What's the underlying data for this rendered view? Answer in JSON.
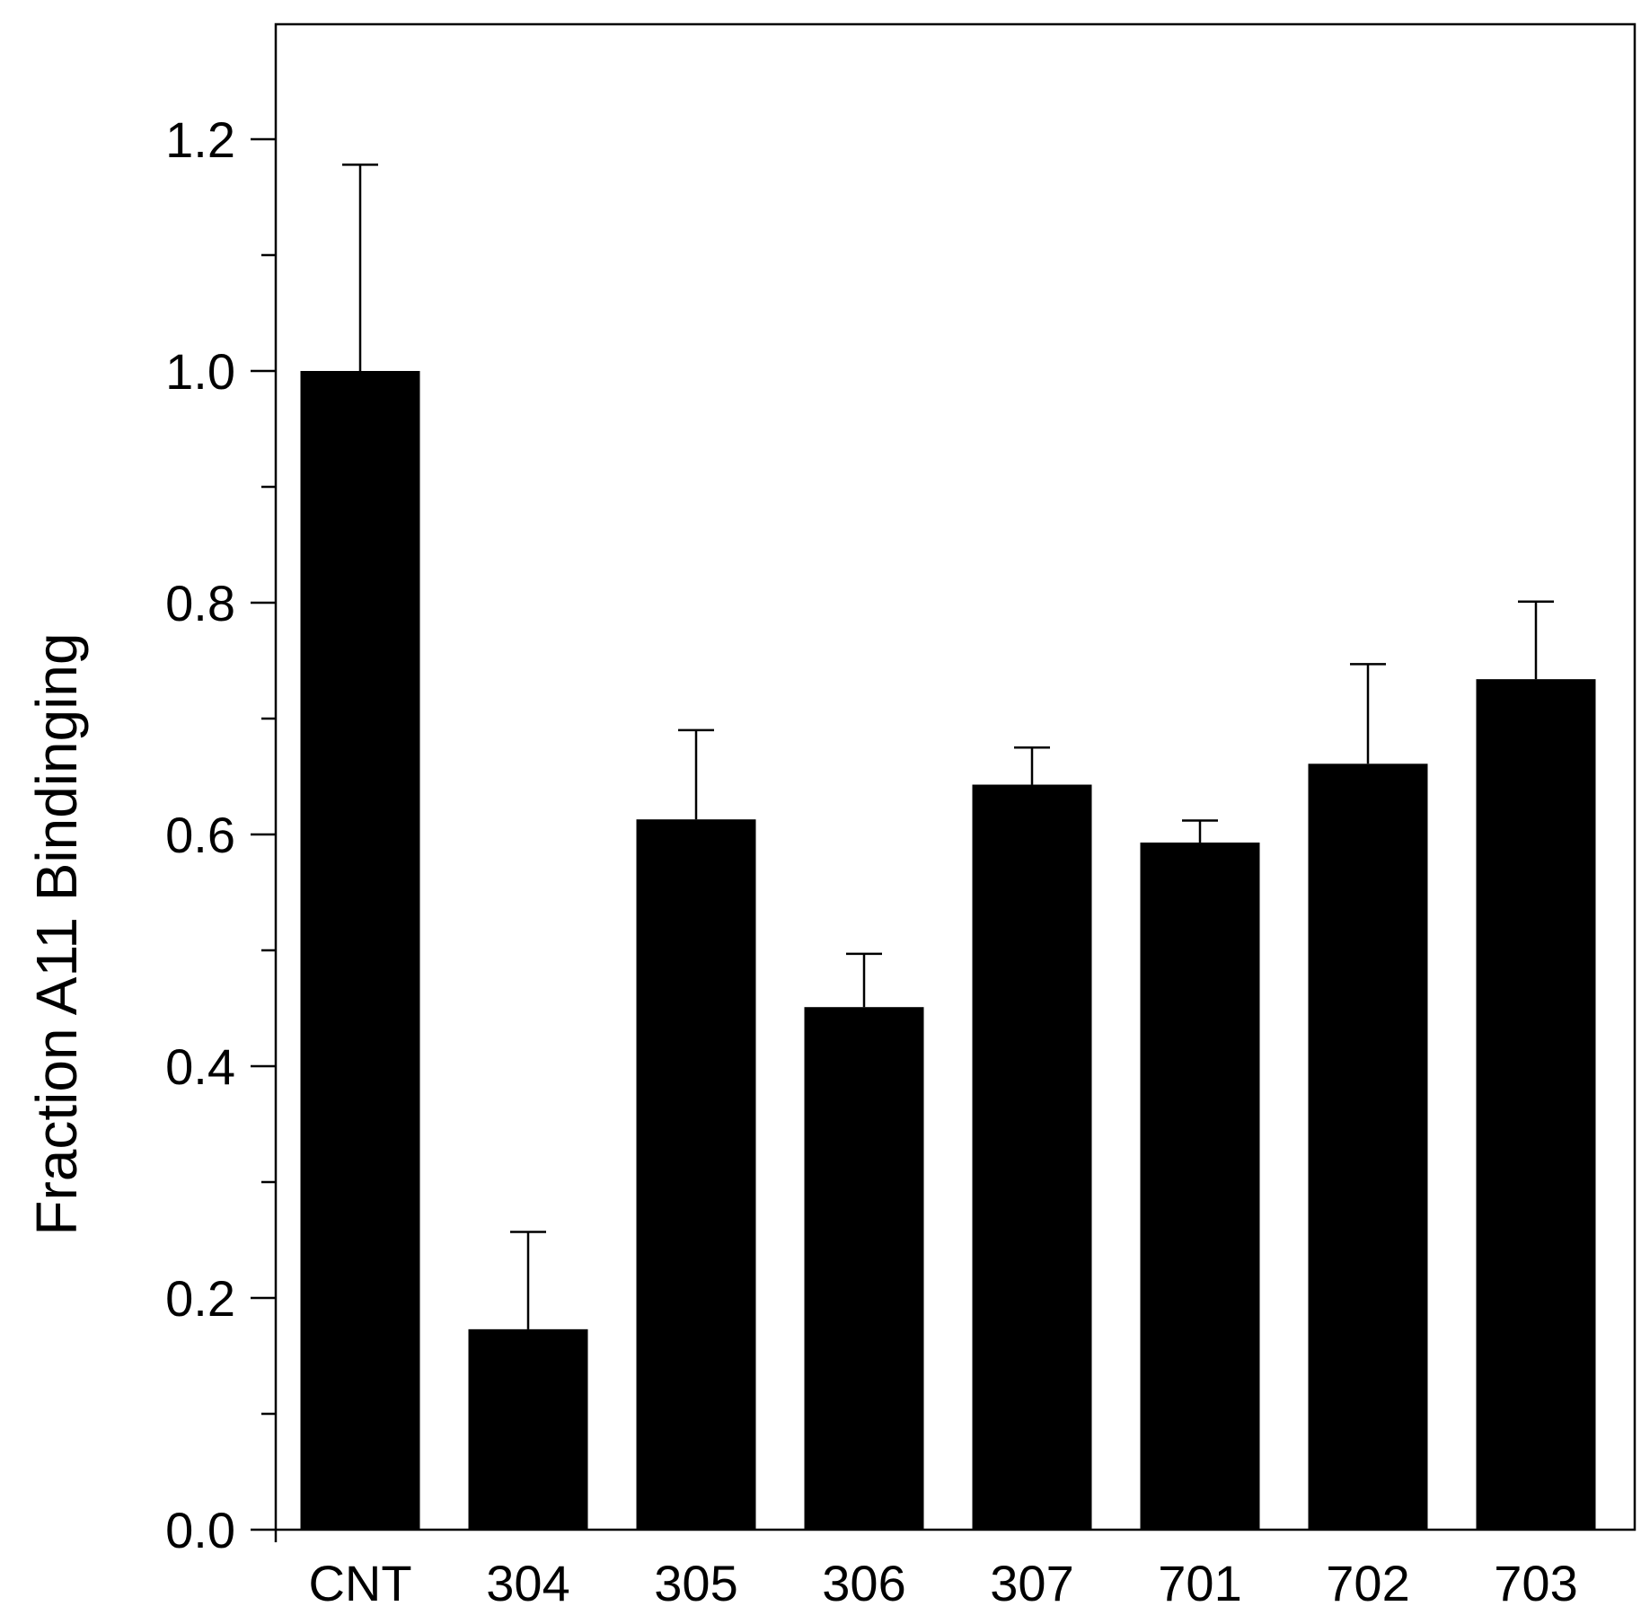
{
  "chart_data": {
    "type": "bar",
    "title": "",
    "xlabel": "",
    "ylabel": "Fraction A11 Bindinging",
    "ylim": [
      0,
      1.3
    ],
    "yticks": [
      {
        "value": 0.0,
        "label": "0.0"
      },
      {
        "value": 0.2,
        "label": "0.2"
      },
      {
        "value": 0.4,
        "label": "0.4"
      },
      {
        "value": 0.6,
        "label": "0.6"
      },
      {
        "value": 0.8,
        "label": "0.8"
      },
      {
        "value": 1.0,
        "label": "1.0"
      },
      {
        "value": 1.2,
        "label": "1.2"
      }
    ],
    "yminor_ticks": [
      0.1,
      0.3,
      0.5,
      0.7,
      0.9,
      1.1
    ],
    "categories": [
      "CNT",
      "304",
      "305",
      "306",
      "307",
      "701",
      "702",
      "703"
    ],
    "values": [
      1.0,
      0.173,
      0.613,
      0.451,
      0.643,
      0.593,
      0.661,
      0.734
    ],
    "errors": [
      0.178,
      0.084,
      0.077,
      0.046,
      0.032,
      0.019,
      0.086,
      0.067
    ],
    "bar_color": "#000000",
    "grid": false,
    "legend": "none"
  }
}
